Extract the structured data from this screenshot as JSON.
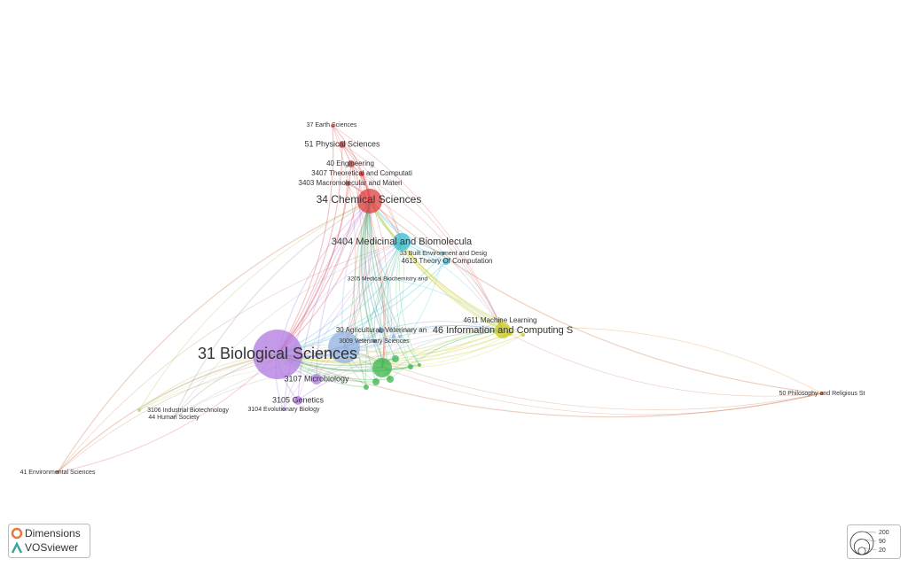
{
  "nodes": [
    {
      "label": "37 Earth Sciences"
    },
    {
      "label": "51 Physical Sciences"
    },
    {
      "label": "40 Engineering"
    },
    {
      "label": "3407 Theoretical and Computati"
    },
    {
      "label": "3403 Macromolecular and Materi"
    },
    {
      "label": "34 Chemical Sciences"
    },
    {
      "label": "3404 Medicinal and Biomolecula"
    },
    {
      "label": "33 Built Environment and Desig"
    },
    {
      "label": "4613 Theory Of Computation"
    },
    {
      "label": "3205 Medical Biochemistry and"
    },
    {
      "label": "4611 Machine Learning"
    },
    {
      "label": "46 Information and Computing S"
    },
    {
      "label": "30 Agricultural, Veterinary an"
    },
    {
      "label": "3009 Veterinary Sciences"
    },
    {
      "label": "31 Biological Sciences"
    },
    {
      "label": "3107 Microbiology"
    },
    {
      "label": "3105 Genetics"
    },
    {
      "label": "3104 Evolutionary Biology"
    },
    {
      "label": "3106 Industrial Biotechnology"
    },
    {
      "label": "44 Human Society"
    },
    {
      "label": "41 Environmental Sciences"
    },
    {
      "label": "50 Philosophy and Religious St"
    }
  ],
  "logos": {
    "dimensions": "Dimensions",
    "vosviewer": "VOSviewer"
  },
  "size_legend": {
    "ticks": [
      200,
      90,
      20
    ]
  }
}
